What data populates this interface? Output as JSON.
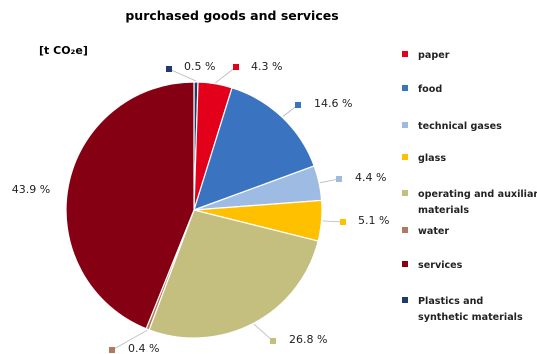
{
  "chart_data": {
    "type": "pie",
    "title": "purchased goods and services",
    "unit_label": "[t CO₂e]",
    "start": "Plastics and synthetic materials",
    "slices": [
      {
        "name": "paper",
        "value": 4.3,
        "label": "4.3 %",
        "color": "#e3001b"
      },
      {
        "name": "food",
        "value": 14.6,
        "label": "14.6 %",
        "color": "#3a73bf"
      },
      {
        "name": "technical gases",
        "value": 4.4,
        "label": "4.4 %",
        "color": "#9dbbe3"
      },
      {
        "name": "glass",
        "value": 5.1,
        "label": "5.1 %",
        "color": "#ffc000"
      },
      {
        "name": "operating and auxiliary materials",
        "value": 26.8,
        "label": "26.8 %",
        "color": "#c4bf7e"
      },
      {
        "name": "water",
        "value": 0.4,
        "label": "0.4 %",
        "color": "#b07a5e"
      },
      {
        "name": "services",
        "value": 43.9,
        "label": "43.9 %",
        "color": "#840012"
      },
      {
        "name": "Plastics and synthetic materials",
        "value": 0.5,
        "label": "0.5 %",
        "color": "#1f3b6e"
      }
    ],
    "legend": {
      "position": "right",
      "entries": [
        {
          "lines": [
            "paper"
          ],
          "color": "#e3001b"
        },
        {
          "lines": [
            "food"
          ],
          "color": "#3a73bf"
        },
        {
          "lines": [
            "technical gases"
          ],
          "color": "#9dbbe3"
        },
        {
          "lines": [
            "glass"
          ],
          "color": "#ffc000"
        },
        {
          "lines": [
            "operating and auxiliary",
            "materials"
          ],
          "color": "#c4bf7e"
        },
        {
          "lines": [
            "water"
          ],
          "color": "#b07a5e"
        },
        {
          "lines": [
            "services"
          ],
          "color": "#840012"
        },
        {
          "lines": [
            "Plastics and",
            "synthetic materials"
          ],
          "color": "#1f3b6e"
        }
      ]
    }
  }
}
